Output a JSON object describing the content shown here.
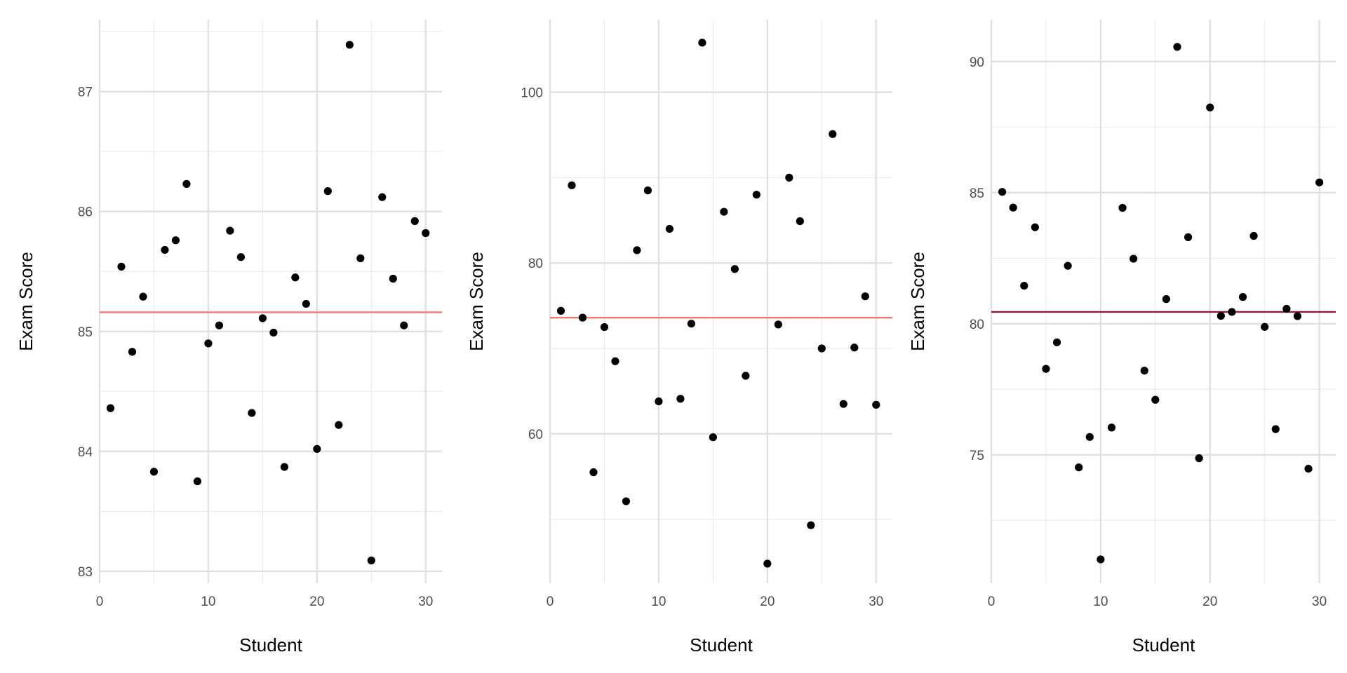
{
  "chart_data": [
    {
      "type": "scatter",
      "xlabel": "Student",
      "ylabel": "Exam Score",
      "xlim": [
        0,
        31.5
      ],
      "ylim": [
        82.9,
        87.6
      ],
      "x_ticks": [
        0,
        10,
        20,
        30
      ],
      "y_ticks": [
        83,
        84,
        85,
        86,
        87
      ],
      "reference_line": {
        "y": 85.16,
        "color": "#F8766D"
      },
      "grid": true,
      "series": [
        {
          "x": [
            1,
            2,
            3,
            4,
            5,
            6,
            7,
            8,
            9,
            10,
            11,
            12,
            13,
            14,
            15,
            16,
            17,
            18,
            19,
            20,
            21,
            22,
            23,
            24,
            25,
            26,
            27,
            28,
            29,
            30
          ],
          "y": [
            84.36,
            85.54,
            84.83,
            85.29,
            83.83,
            85.68,
            85.76,
            86.23,
            83.75,
            84.9,
            85.05,
            85.84,
            85.62,
            84.32,
            85.11,
            84.99,
            83.87,
            85.45,
            85.23,
            84.02,
            86.17,
            84.22,
            87.39,
            85.61,
            83.09,
            86.12,
            85.44,
            85.05,
            85.92,
            85.82
          ]
        }
      ]
    },
    {
      "type": "scatter",
      "xlabel": "Student",
      "ylabel": "Exam Score",
      "xlim": [
        0,
        31.5
      ],
      "ylim": [
        42.5,
        108.5
      ],
      "x_ticks": [
        0,
        10,
        20,
        30
      ],
      "y_ticks": [
        60,
        80,
        100
      ],
      "reference_line": {
        "y": 73.6,
        "color": "#F8766D"
      },
      "grid": true,
      "series": [
        {
          "x": [
            1,
            2,
            3,
            4,
            5,
            6,
            7,
            8,
            9,
            10,
            11,
            12,
            13,
            14,
            15,
            16,
            17,
            18,
            19,
            20,
            21,
            22,
            23,
            24,
            25,
            26,
            27,
            28,
            29,
            30
          ],
          "y": [
            74.4,
            89.1,
            73.6,
            55.5,
            72.5,
            68.5,
            52.1,
            81.5,
            88.5,
            63.8,
            84,
            64.1,
            72.9,
            105.8,
            59.6,
            86,
            79.3,
            66.8,
            88,
            44.8,
            72.8,
            90,
            84.9,
            49.3,
            70,
            95.1,
            63.5,
            70.1,
            76.1,
            63.4
          ]
        }
      ]
    },
    {
      "type": "scatter",
      "xlabel": "Student",
      "ylabel": "Exam Score",
      "xlim": [
        0,
        31.5
      ],
      "ylim": [
        70.1,
        91.6
      ],
      "x_ticks": [
        0,
        10,
        20,
        30
      ],
      "y_ticks": [
        75,
        80,
        85,
        90
      ],
      "reference_line": {
        "y": 80.45,
        "color": "#8B1A4A"
      },
      "grid": true,
      "series": [
        {
          "x": [
            1,
            2,
            3,
            4,
            5,
            6,
            7,
            8,
            9,
            10,
            11,
            12,
            13,
            14,
            15,
            16,
            17,
            18,
            19,
            20,
            21,
            22,
            23,
            24,
            25,
            26,
            27,
            28,
            29,
            30
          ],
          "y": [
            85.03,
            84.43,
            81.45,
            83.68,
            78.28,
            79.29,
            82.21,
            74.52,
            75.68,
            71.01,
            76.04,
            84.42,
            82.48,
            78.21,
            77.1,
            80.94,
            90.56,
            83.3,
            74.87,
            88.25,
            80.3,
            80.45,
            81.02,
            83.35,
            79.88,
            75.98,
            80.57,
            80.29,
            74.47,
            85.39
          ]
        }
      ]
    }
  ]
}
